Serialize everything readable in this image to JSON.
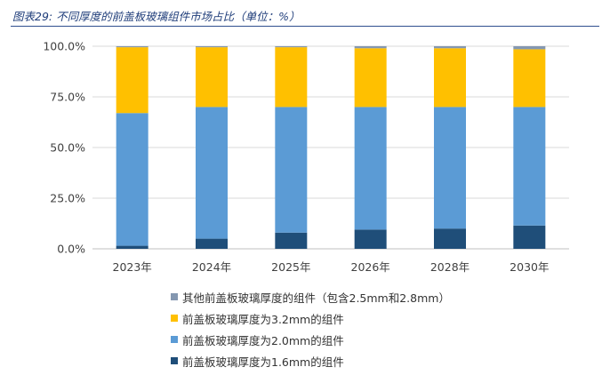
{
  "figure": {
    "title": "图表29: 不同厚度的前盖板玻璃组件市场占比（单位：%）"
  },
  "chart_data": {
    "type": "bar",
    "stacked": true,
    "categories": [
      "2023年",
      "2024年",
      "2025年",
      "2026年",
      "2028年",
      "2030年"
    ],
    "ylim": [
      0,
      100
    ],
    "yticks": [
      "0.0%",
      "25.0%",
      "50.0%",
      "75.0%",
      "100.0%"
    ],
    "grid": true,
    "legend_position": "bottom",
    "series": [
      {
        "name": "前盖板玻璃厚度为1.6mm的组件",
        "color": "#1f4e79",
        "values": [
          1.5,
          5.0,
          8.0,
          9.5,
          10.0,
          11.5
        ]
      },
      {
        "name": "前盖板玻璃厚度为2.0mm的组件",
        "color": "#5b9bd5",
        "values": [
          65.5,
          65.0,
          62.0,
          60.5,
          60.0,
          58.5
        ]
      },
      {
        "name": "前盖板玻璃厚度为3.2mm的组件",
        "color": "#ffc000",
        "values": [
          32.5,
          29.5,
          29.5,
          29.0,
          29.0,
          28.5
        ]
      },
      {
        "name": "其他前盖板玻璃厚度的组件（包含2.5mm和2.8mm）",
        "color": "#8497b0",
        "values": [
          0.5,
          0.5,
          0.5,
          1.0,
          1.0,
          1.5
        ]
      }
    ]
  }
}
